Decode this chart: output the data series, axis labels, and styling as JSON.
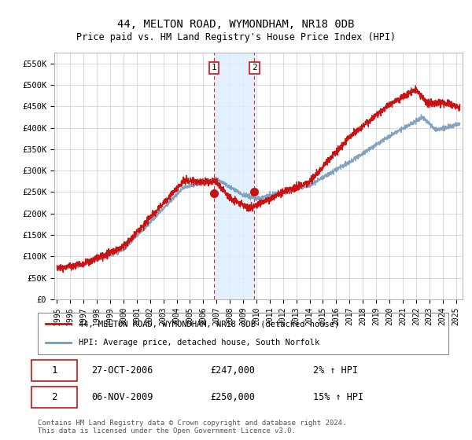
{
  "title": "44, MELTON ROAD, WYMONDHAM, NR18 0DB",
  "subtitle": "Price paid vs. HM Land Registry's House Price Index (HPI)",
  "ylabel_ticks": [
    "£0",
    "£50K",
    "£100K",
    "£150K",
    "£200K",
    "£250K",
    "£300K",
    "£350K",
    "£400K",
    "£450K",
    "£500K",
    "£550K"
  ],
  "ytick_vals": [
    0,
    50000,
    100000,
    150000,
    200000,
    250000,
    300000,
    350000,
    400000,
    450000,
    500000,
    550000
  ],
  "ylim": [
    0,
    575000
  ],
  "xlim_start": 1994.8,
  "xlim_end": 2025.5,
  "background_color": "#ffffff",
  "plot_bg_color": "#ffffff",
  "grid_color": "#cccccc",
  "purchase1_x": 2006.82,
  "purchase1_y": 247000,
  "purchase2_x": 2009.85,
  "purchase2_y": 250000,
  "purchase1_label": "1",
  "purchase2_label": "2",
  "vline1_color": "#dd2222",
  "vline2_color": "#dd2222",
  "shade_color": "#ddeeff",
  "red_line_color": "#cc1111",
  "blue_line_color": "#7799bb",
  "legend_label1": "44, MELTON ROAD, WYMONDHAM, NR18 0DB (detached house)",
  "legend_label2": "HPI: Average price, detached house, South Norfolk",
  "annotation1_date": "27-OCT-2006",
  "annotation1_price": "£247,000",
  "annotation1_hpi": "2% ↑ HPI",
  "annotation2_date": "06-NOV-2009",
  "annotation2_price": "£250,000",
  "annotation2_hpi": "15% ↑ HPI",
  "footnote": "Contains HM Land Registry data © Crown copyright and database right 2024.\nThis data is licensed under the Open Government Licence v3.0.",
  "xtick_years": [
    1995,
    1996,
    1997,
    1998,
    1999,
    2000,
    2001,
    2002,
    2003,
    2004,
    2005,
    2006,
    2007,
    2008,
    2009,
    2010,
    2011,
    2012,
    2013,
    2014,
    2015,
    2016,
    2017,
    2018,
    2019,
    2020,
    2021,
    2022,
    2023,
    2024,
    2025
  ]
}
